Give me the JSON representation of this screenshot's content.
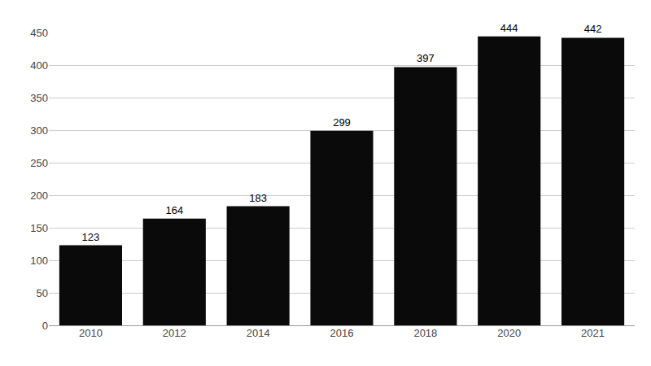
{
  "chart_data": {
    "type": "bar",
    "categories": [
      "2010",
      "2012",
      "2014",
      "2016",
      "2018",
      "2020",
      "2021"
    ],
    "values": [
      123,
      164,
      183,
      299,
      397,
      444,
      442
    ],
    "color": "#0a0a0a",
    "ylim": [
      0,
      450
    ],
    "yticks": [
      0,
      50,
      100,
      150,
      200,
      250,
      300,
      350,
      400,
      450
    ],
    "grid": true,
    "data_labels": true
  }
}
